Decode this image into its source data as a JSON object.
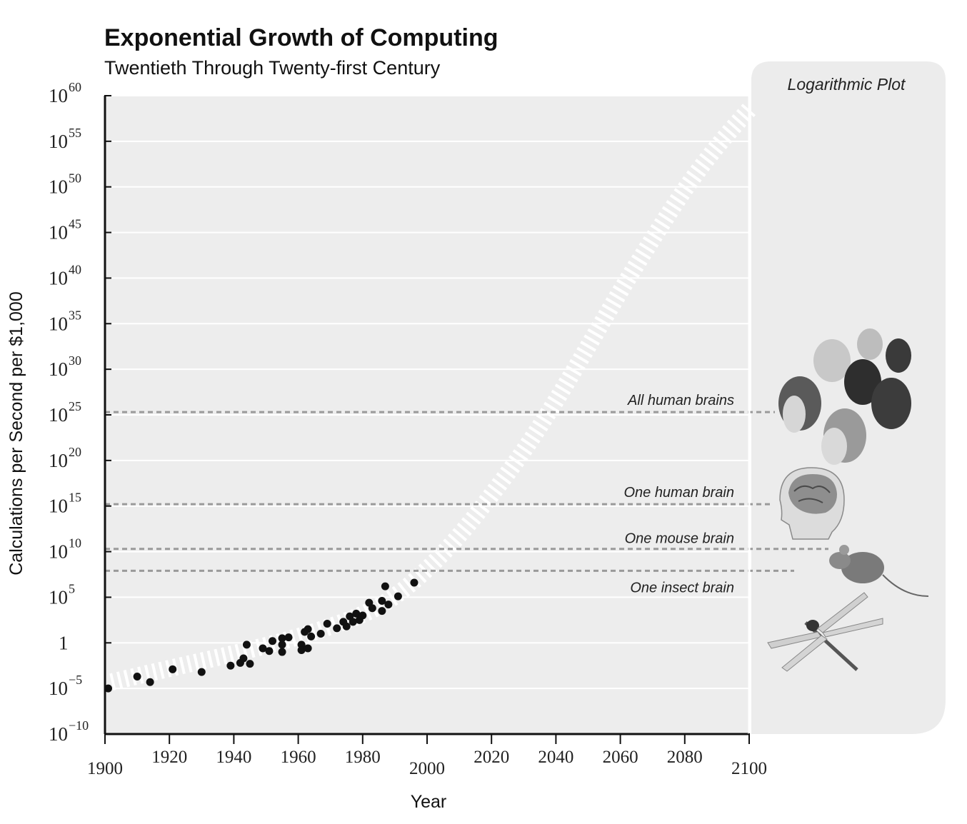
{
  "chart_data": {
    "type": "scatter",
    "title": "Exponential Growth of Computing",
    "subtitle": "Twentieth Through Twenty-first Century",
    "xlabel": "Year",
    "ylabel": "Calculations per Second per $1,000",
    "xlim": [
      1900,
      2100
    ],
    "x_ticks": [
      1900,
      1920,
      1940,
      1960,
      1980,
      2000,
      2020,
      2040,
      2060,
      2080,
      2100
    ],
    "x_tick_labels": [
      "1900",
      "1920",
      "1940",
      "1960",
      "1980",
      "2000",
      "2020",
      "2040",
      "2060",
      "2080",
      "2100"
    ],
    "y_scale": "log",
    "ylim_exponent": [
      -10,
      60
    ],
    "y_ticks_exponent": [
      -10,
      -5,
      0,
      5,
      10,
      15,
      20,
      25,
      30,
      35,
      40,
      45,
      50,
      55,
      60
    ],
    "y_tick_labels": [
      {
        "base": "10",
        "exp": "−10"
      },
      {
        "base": "10",
        "exp": "−5"
      },
      {
        "base": "1",
        "exp": ""
      },
      {
        "base": "10",
        "exp": "5"
      },
      {
        "base": "10",
        "exp": "10"
      },
      {
        "base": "10",
        "exp": "15"
      },
      {
        "base": "10",
        "exp": "20"
      },
      {
        "base": "10",
        "exp": "25"
      },
      {
        "base": "10",
        "exp": "30"
      },
      {
        "base": "10",
        "exp": "35"
      },
      {
        "base": "10",
        "exp": "40"
      },
      {
        "base": "10",
        "exp": "45"
      },
      {
        "base": "10",
        "exp": "50"
      },
      {
        "base": "10",
        "exp": "55"
      },
      {
        "base": "10",
        "exp": "60"
      }
    ],
    "grid": true,
    "series": [
      {
        "type": "scatter",
        "points_log10": [
          [
            1901,
            -5.0
          ],
          [
            1910,
            -3.7
          ],
          [
            1914,
            -4.3
          ],
          [
            1921,
            -2.9
          ],
          [
            1930,
            -3.2
          ],
          [
            1939,
            -2.5
          ],
          [
            1942,
            -2.2
          ],
          [
            1943,
            -1.7
          ],
          [
            1944,
            -0.2
          ],
          [
            1945,
            -2.3
          ],
          [
            1949,
            -0.6
          ],
          [
            1951,
            -0.9
          ],
          [
            1952,
            0.2
          ],
          [
            1955,
            0.5
          ],
          [
            1955,
            -0.2
          ],
          [
            1955,
            -1.0
          ],
          [
            1957,
            0.6
          ],
          [
            1961,
            -0.2
          ],
          [
            1961,
            -0.8
          ],
          [
            1962,
            1.2
          ],
          [
            1963,
            -0.6
          ],
          [
            1963,
            1.5
          ],
          [
            1964,
            0.7
          ],
          [
            1967,
            1.0
          ],
          [
            1969,
            2.1
          ],
          [
            1972,
            1.6
          ],
          [
            1974,
            2.3
          ],
          [
            1975,
            1.8
          ],
          [
            1976,
            2.9
          ],
          [
            1977,
            2.3
          ],
          [
            1978,
            3.2
          ],
          [
            1979,
            2.5
          ],
          [
            1980,
            3.0
          ],
          [
            1982,
            4.4
          ],
          [
            1983,
            3.8
          ],
          [
            1986,
            3.5
          ],
          [
            1986,
            4.6
          ],
          [
            1987,
            6.2
          ],
          [
            1988,
            4.2
          ],
          [
            1991,
            5.1
          ],
          [
            1996,
            6.6
          ]
        ]
      },
      {
        "type": "trend",
        "style": "dashed-wide",
        "points_log10": [
          [
            1902,
            -4.3
          ],
          [
            1920,
            -2.8
          ],
          [
            1940,
            -1.2
          ],
          [
            1960,
            0.6
          ],
          [
            1980,
            3.0
          ],
          [
            1990,
            5.0
          ],
          [
            2000,
            8.0
          ],
          [
            2010,
            11.7
          ],
          [
            2020,
            16.2
          ],
          [
            2030,
            21.0
          ],
          [
            2040,
            26.5
          ],
          [
            2050,
            32.5
          ],
          [
            2060,
            38.6
          ],
          [
            2070,
            44.3
          ],
          [
            2080,
            49.8
          ],
          [
            2090,
            54.5
          ],
          [
            2100,
            58.5
          ]
        ]
      }
    ],
    "reference_lines": [
      {
        "label": "All human brains",
        "y_log10": 25.3
      },
      {
        "label": "One human brain",
        "y_log10": 15.2
      },
      {
        "label": "One mouse brain",
        "y_log10": 10.3
      },
      {
        "label": "One insect brain",
        "y_log10": 7.9
      }
    ],
    "side_panel": {
      "label": "Logarithmic Plot"
    },
    "colors": {
      "plot_background": "#ededed",
      "gridline": "#ffffff",
      "point": "#111111",
      "trend": "#ffffff",
      "reference_line": "#9a9a9a",
      "axis": "#111111"
    },
    "icons": [
      "crowd-of-heads-icon",
      "brain-head-icon",
      "mouse-icon",
      "dragonfly-icon"
    ]
  }
}
